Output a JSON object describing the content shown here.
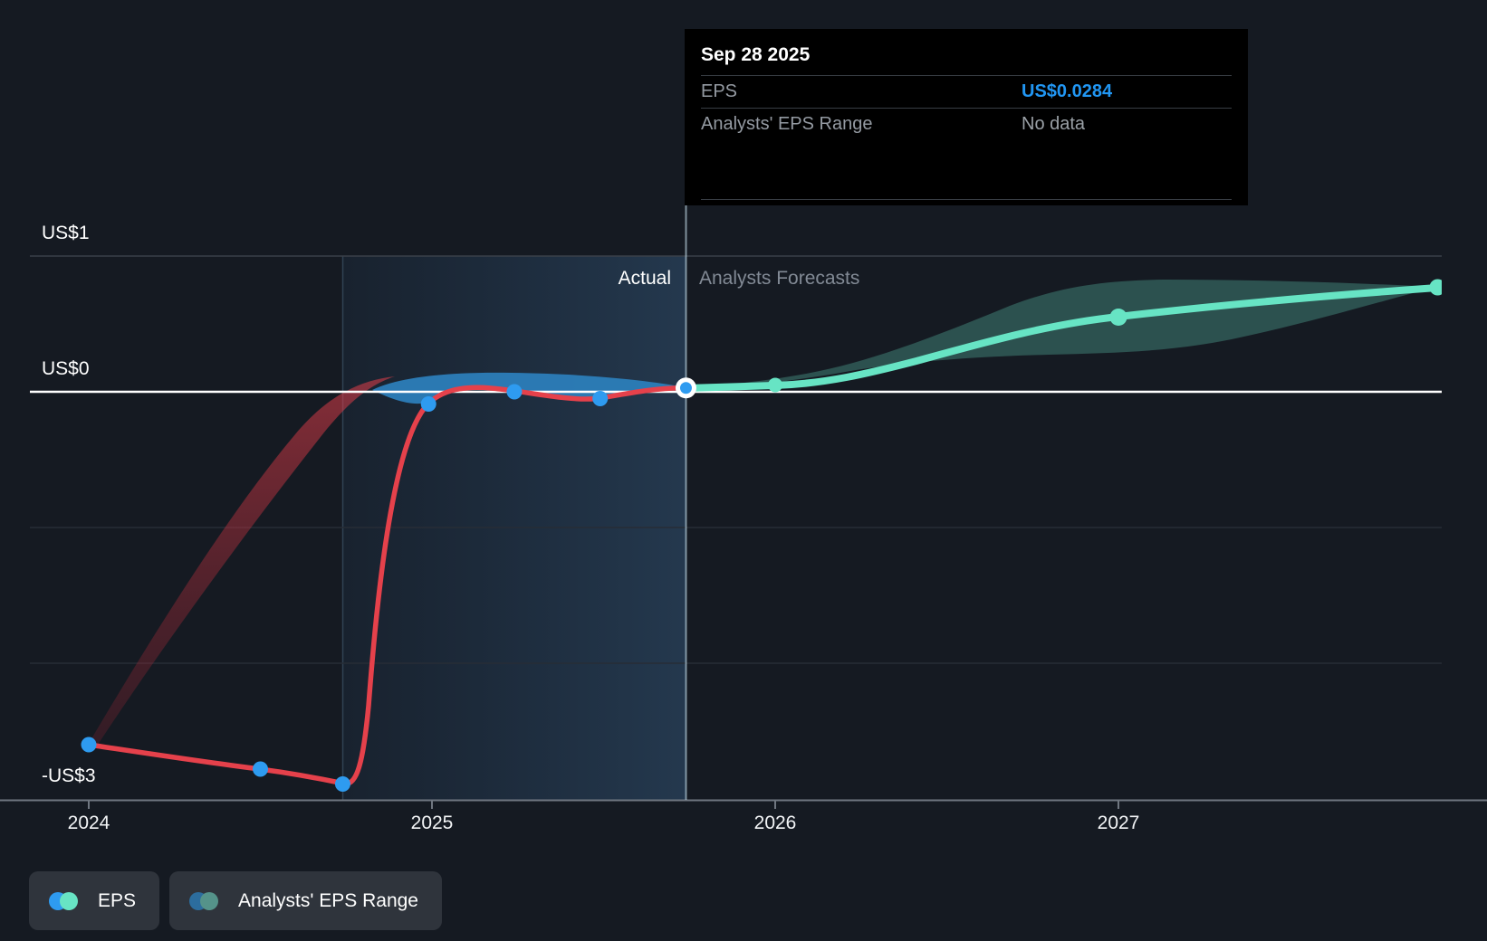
{
  "tooltip": {
    "date": "Sep 28 2025",
    "rows": [
      {
        "label": "EPS",
        "value": "US$0.0284",
        "value_color": "#2196f3",
        "value_bold": true
      },
      {
        "label": "Analysts' EPS Range",
        "value": "No data",
        "value_color": "#9aa0a6",
        "value_bold": false
      }
    ]
  },
  "annotations": {
    "actual": "Actual",
    "forecast": "Analysts Forecasts"
  },
  "legend": {
    "items": [
      {
        "label": "EPS",
        "dot_left": "#2e9bf0",
        "dot_right": "#68e4c4"
      },
      {
        "label": "Analysts' EPS Range",
        "dot_left": "#2c6d9e",
        "dot_right": "#55938a"
      }
    ]
  },
  "colors": {
    "background": "#151a22",
    "actual_line": "#e5414b",
    "actual_marker": "#2e9bf0",
    "forecast_line": "#67e4c4",
    "forecast_band": "rgba(105,228,197,0.28)",
    "zero_line": "#ffffff",
    "gridline": "#272d36",
    "axis": "#6f7680",
    "tooltip_value_blue": "#2196f3"
  },
  "chart_data": {
    "type": "line",
    "title": "EPS actual vs analysts forecast",
    "x_unit": "year (decimal)",
    "xlim": [
      2023.83,
      2028.07
    ],
    "ylim": [
      -3.35,
      1.0
    ],
    "currency": "US$",
    "y_ticks": [
      {
        "value": 1,
        "label": "US$1"
      },
      {
        "value": 0,
        "label": "US$0"
      },
      {
        "value": -3,
        "label": "-US$3"
      }
    ],
    "y_gridlines": [
      1,
      0,
      -1,
      -2,
      -3
    ],
    "x_ticks": [
      {
        "value": 2024,
        "label": "2024"
      },
      {
        "value": 2025,
        "label": "2025"
      },
      {
        "value": 2026,
        "label": "2026"
      },
      {
        "value": 2027,
        "label": "2027"
      }
    ],
    "divider_x": 2025.74,
    "highlight_region": {
      "from": 2024.74,
      "to": 2025.74
    },
    "series": [
      {
        "name": "EPS (actual)",
        "type": "line",
        "points": [
          {
            "x": 2024.0,
            "y": -2.6
          },
          {
            "x": 2024.5,
            "y": -2.78
          },
          {
            "x": 2024.74,
            "y": -2.89
          },
          {
            "x": 2024.99,
            "y": -0.09
          },
          {
            "x": 2025.24,
            "y": 0.0
          },
          {
            "x": 2025.49,
            "y": -0.05
          },
          {
            "x": 2025.74,
            "y": 0.0284
          }
        ]
      },
      {
        "name": "EPS (analysts forecast)",
        "type": "line",
        "points": [
          {
            "x": 2025.74,
            "y": 0.0284
          },
          {
            "x": 2026.0,
            "y": 0.05
          },
          {
            "x": 2027.0,
            "y": 0.55
          },
          {
            "x": 2027.93,
            "y": 0.77
          }
        ]
      },
      {
        "name": "Analysts' EPS Range",
        "type": "band",
        "points": [
          {
            "x": 2025.74,
            "top": 0.0284,
            "bottom": 0.0284
          },
          {
            "x": 2026.0,
            "top": 0.09,
            "bottom": 0.03
          },
          {
            "x": 2027.0,
            "top": 0.81,
            "bottom": 0.3
          },
          {
            "x": 2027.93,
            "top": 0.77,
            "bottom": 0.77
          }
        ]
      }
    ]
  }
}
